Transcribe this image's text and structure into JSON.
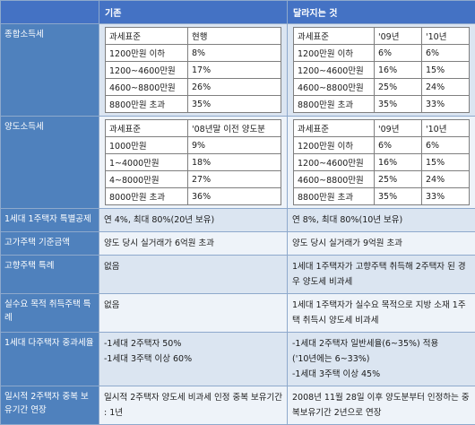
{
  "header": {
    "blank": "",
    "before": "기존",
    "after": "달라지는 것"
  },
  "rows": {
    "income_tax": {
      "label": "종합소득세",
      "before": {
        "head": [
          "과세표준",
          "현행"
        ],
        "rows": [
          [
            "1200만원 이하",
            "8%"
          ],
          [
            "1200~4600만원",
            "17%"
          ],
          [
            "4600~8800만원",
            "26%"
          ],
          [
            "8800만원 초과",
            "35%"
          ]
        ]
      },
      "after": {
        "head": [
          "과세표준",
          "'09년",
          "'10년"
        ],
        "rows": [
          [
            "1200만원 이하",
            "6%",
            "6%"
          ],
          [
            "1200~4600만원",
            "16%",
            "15%"
          ],
          [
            "4600~8800만원",
            "25%",
            "24%"
          ],
          [
            "8800만원 초과",
            "35%",
            "33%"
          ]
        ]
      }
    },
    "transfer_tax": {
      "label": "양도소득세",
      "before": {
        "head": [
          "과세표준",
          "'08년말 이전 양도분"
        ],
        "rows": [
          [
            "1000만원",
            "9%"
          ],
          [
            "1~4000만원",
            "18%"
          ],
          [
            "4~8000만원",
            "27%"
          ],
          [
            "8000만원 초과",
            "36%"
          ]
        ]
      },
      "after": {
        "head": [
          "과세표준",
          "'09년",
          "'10년"
        ],
        "rows": [
          [
            "1200만원 이하",
            "6%",
            "6%"
          ],
          [
            "1200~4600만원",
            "16%",
            "15%"
          ],
          [
            "4600~8800만원",
            "25%",
            "24%"
          ],
          [
            "8800만원 초과",
            "35%",
            "33%"
          ]
        ]
      }
    },
    "one_house": {
      "label": "1세대 1주택자 특별공제",
      "before": "연 4%, 최대 80%(20년 보유)",
      "after": "연 8%, 최대 80%(10년 보유)"
    },
    "luxury": {
      "label": "고가주택 기준금액",
      "before": "양도 당시 실거래가 6억원 초과",
      "after": "양도 당시 실거래가 9억원 초과"
    },
    "hometown": {
      "label": "고향주택 특례",
      "before": "없음",
      "after": "1세대 1주택자가 고향주택 취득해 2주택자 된 경우 양도세 비과세"
    },
    "actual_demand": {
      "label": "실수요 목적 취득주택 특례",
      "before": "없음",
      "after": "1세대 1주택자가 실수요 목적으로 지방 소재 1주택 취득시 양도세 비과세"
    },
    "multi": {
      "label": "1세대 다주택자 중과세율",
      "before": [
        "-1세대 2주택자 50%",
        "-1세대 3주택 이상 60%"
      ],
      "after": [
        "-1세대 2주택자 일반세율(6~35%) 적용",
        "('10년에는 6~33%)",
        "-1세대 3주택 이상 45%"
      ]
    },
    "temporary": {
      "label": "일시적 2주택자 중복 보유기간 연장",
      "before": "일시적 2주택자 양도세 비과세 인정 중복 보유기간 : 1년",
      "after": "2008년 11월 28일 이후 양도분부터 인정하는 중복보유기간 2년으로 연장"
    }
  }
}
